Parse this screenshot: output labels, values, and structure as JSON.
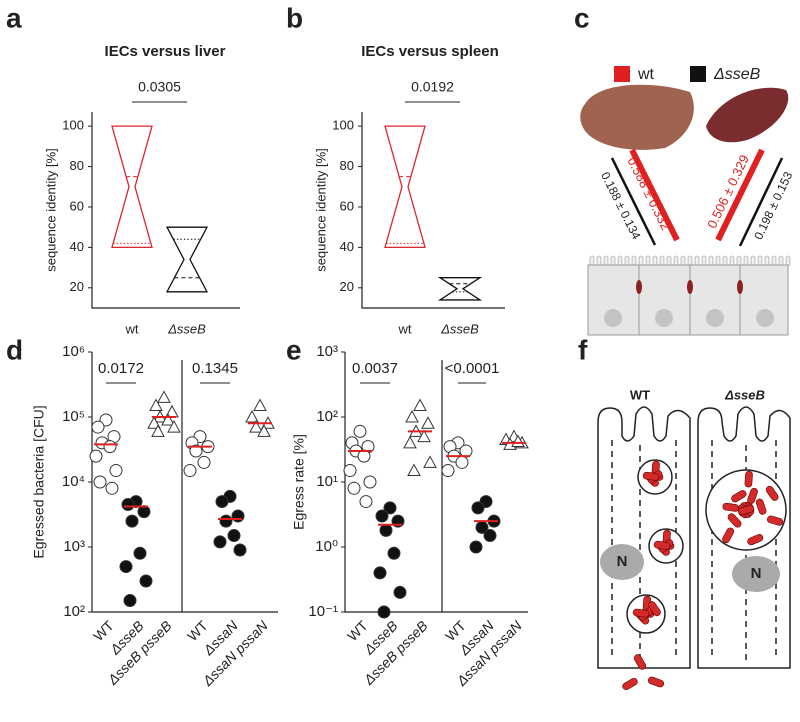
{
  "panel_labels": [
    "a",
    "b",
    "c",
    "d",
    "e",
    "f"
  ],
  "chart_data": [
    {
      "type": "violin",
      "title": "IECs versus liver",
      "ylabel": "sequence identity [%]",
      "categories": [
        "wt",
        "ΔsseB"
      ],
      "series": [
        {
          "color": "#d9262b",
          "max": 100,
          "min": 40,
          "median": 75,
          "quartile": 42
        },
        {
          "color": "#111111",
          "max": 50,
          "min": 18,
          "median": 25,
          "quartile": 44
        }
      ],
      "annotations": [
        "0.0305"
      ],
      "ylim": [
        10,
        107
      ],
      "yticks": [
        20,
        40,
        60,
        80,
        100
      ]
    },
    {
      "type": "violin",
      "title": "IECs versus spleen",
      "ylabel": "sequence identity [%]",
      "categories": [
        "wt",
        "ΔsseB"
      ],
      "series": [
        {
          "color": "#d9262b",
          "max": 100,
          "min": 40,
          "median": 75,
          "quartile": 42
        },
        {
          "color": "#111111",
          "max": 25,
          "min": 14,
          "median": 22,
          "quartile": 18
        }
      ],
      "annotations": [
        "0.0192"
      ],
      "ylim": [
        10,
        107
      ],
      "yticks": [
        20,
        40,
        60,
        80,
        100
      ]
    },
    {
      "type": "dot",
      "ylabel": "Egressed bacteria [CFU]",
      "log": true,
      "categories": [
        "WT",
        "ΔsseB",
        "ΔsseB psseB",
        "WT",
        "ΔssaN",
        "ΔssaN pssaN"
      ],
      "markers": [
        "open-circle",
        "filled-circle",
        "open-triangle",
        "open-circle",
        "filled-circle",
        "open-triangle"
      ],
      "values": [
        [
          90000,
          70000,
          50000,
          40000,
          35000,
          25000,
          15000,
          10000,
          8000
        ],
        [
          5000,
          4500,
          3500,
          2500,
          800,
          500,
          300,
          150
        ],
        [
          200000,
          150000,
          120000,
          100000,
          90000,
          80000,
          70000,
          60000
        ],
        [
          50000,
          40000,
          35000,
          30000,
          20000,
          15000
        ],
        [
          6000,
          5000,
          3000,
          2500,
          1500,
          1200,
          900
        ],
        [
          150000,
          100000,
          80000,
          70000,
          60000
        ]
      ],
      "medians": [
        38000,
        4200,
        100000,
        35000,
        2700,
        80000
      ],
      "median_color": "#e02020",
      "annotations": [
        "0.0172",
        "0.1345"
      ],
      "ylim": [
        100,
        1000000
      ],
      "yticks": [
        {
          "value": 100,
          "label": "10²"
        },
        {
          "value": 1000,
          "label": "10³"
        },
        {
          "value": 10000,
          "label": "10⁴"
        },
        {
          "value": 100000,
          "label": "10⁵"
        },
        {
          "value": 1000000,
          "label": "10⁶"
        }
      ]
    },
    {
      "type": "dot",
      "ylabel": "Egress rate [%]",
      "log": true,
      "categories": [
        "WT",
        "ΔsseB",
        "ΔsseB psseB",
        "WT",
        "ΔssaN",
        "ΔssaN pssaN"
      ],
      "markers": [
        "open-circle",
        "filled-circle",
        "open-triangle",
        "open-circle",
        "filled-circle",
        "open-triangle"
      ],
      "values": [
        [
          60,
          40,
          35,
          30,
          25,
          15,
          10,
          8,
          5
        ],
        [
          4,
          3,
          2.5,
          1.8,
          0.8,
          0.4,
          0.2,
          0.1
        ],
        [
          150,
          100,
          80,
          60,
          50,
          40,
          20,
          15
        ],
        [
          40,
          35,
          30,
          25,
          20,
          15
        ],
        [
          5,
          4,
          2.5,
          2,
          1.5,
          1
        ],
        [
          50,
          45,
          40,
          38,
          42
        ]
      ],
      "medians": [
        30,
        2.2,
        60,
        25,
        2.5,
        40
      ],
      "median_color": "#e02020",
      "annotations": [
        "0.0037",
        "<0.0001"
      ],
      "ylim": [
        0.1,
        1000
      ],
      "yticks": [
        {
          "value": 0.1,
          "label": "10⁻¹"
        },
        {
          "value": 1,
          "label": "10⁰"
        },
        {
          "value": 10,
          "label": "10¹"
        },
        {
          "value": 100,
          "label": "10²"
        },
        {
          "value": 1000,
          "label": "10³"
        }
      ]
    }
  ],
  "diagram_c": {
    "legend": [
      "wt",
      "ΔsseB"
    ],
    "liver": [
      "0.588 ± 0.332",
      "0.188 ± 0.134"
    ],
    "spleen": [
      "0.506 ± 0.329",
      "0.198 ± 0.153"
    ]
  },
  "diagram_f": {
    "labels": [
      "WT",
      "ΔsseB"
    ],
    "nuclei": [
      "N",
      "N"
    ]
  }
}
